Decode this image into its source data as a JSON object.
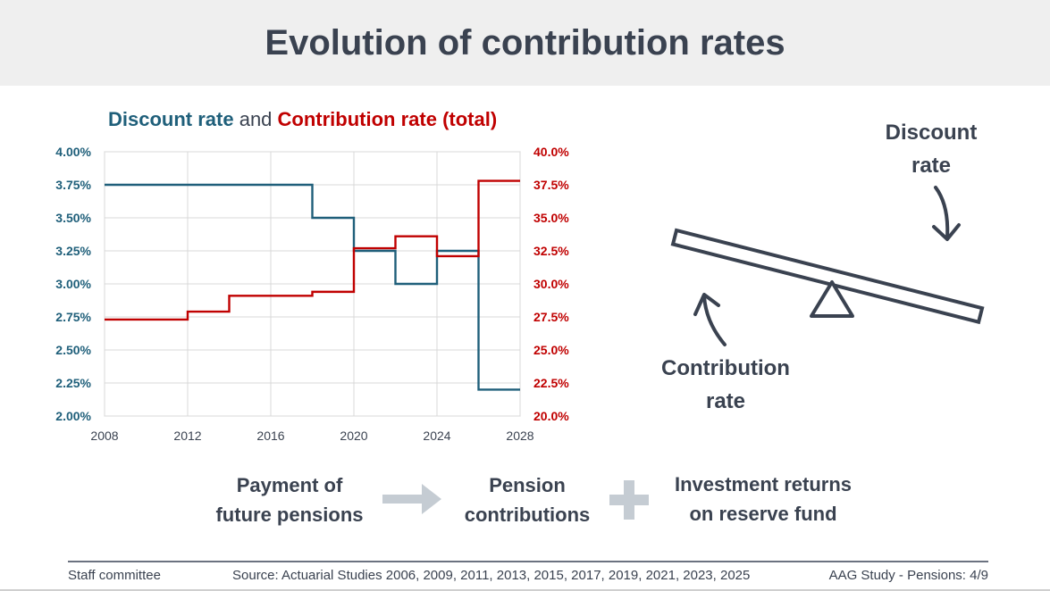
{
  "page": {
    "title": "Evolution of contribution rates"
  },
  "chart_heading": {
    "left": "Discount rate",
    "mid": " and ",
    "right": "Contribution rate (total)"
  },
  "colors": {
    "discount": "#1f5f7a",
    "contribution": "#c00000",
    "text": "#3a4250",
    "arrow": "#c5ccd3"
  },
  "chart_data": {
    "type": "line",
    "step": true,
    "title": "Discount rate and Contribution rate (total)",
    "xlim": [
      2008,
      2028
    ],
    "x_ticks": [
      "2008",
      "2012",
      "2016",
      "2020",
      "2024",
      "2028"
    ],
    "y_left": {
      "ylim": [
        2.0,
        4.0
      ],
      "ticks": [
        "2.00%",
        "2.25%",
        "2.50%",
        "2.75%",
        "3.00%",
        "3.25%",
        "3.50%",
        "3.75%",
        "4.00%"
      ]
    },
    "y_right": {
      "ylim": [
        20.0,
        40.0
      ],
      "ticks": [
        "20.0%",
        "22.5%",
        "25.0%",
        "27.5%",
        "30.0%",
        "32.5%",
        "35.0%",
        "37.5%",
        "40.0%"
      ]
    },
    "grid": true,
    "series": [
      {
        "name": "Discount rate",
        "axis": "left",
        "x": [
          2008,
          2018,
          2020,
          2022,
          2024,
          2026,
          2028
        ],
        "y": [
          3.75,
          3.5,
          3.25,
          3.0,
          3.25,
          2.2,
          2.2
        ]
      },
      {
        "name": "Contribution rate (total)",
        "axis": "right",
        "x": [
          2008,
          2012,
          2014,
          2018,
          2020,
          2022,
          2024,
          2026,
          2028
        ],
        "y": [
          27.3,
          27.9,
          29.1,
          29.4,
          32.7,
          33.6,
          32.1,
          37.8,
          37.8
        ]
      }
    ]
  },
  "balance": {
    "discount_label_line1": "Discount",
    "discount_label_line2": "rate",
    "contribution_label_line1": "Contribution",
    "contribution_label_line2": "rate"
  },
  "flow": {
    "payment_line1": "Payment of",
    "payment_line2": "future pensions",
    "arrow_icon": "right-arrow-icon",
    "pension_line1": "Pension",
    "pension_line2": "contributions",
    "plus_icon": "plus-icon",
    "investment_line1": "Investment returns",
    "investment_line2": "on reserve fund"
  },
  "footer": {
    "left": "Staff committee",
    "source": "Source: Actuarial Studies 2006, 2009, 2011, 2013, 2015, 2017, 2019, 2021, 2023, 2025",
    "right": "AAG Study - Pensions: 4/9"
  }
}
